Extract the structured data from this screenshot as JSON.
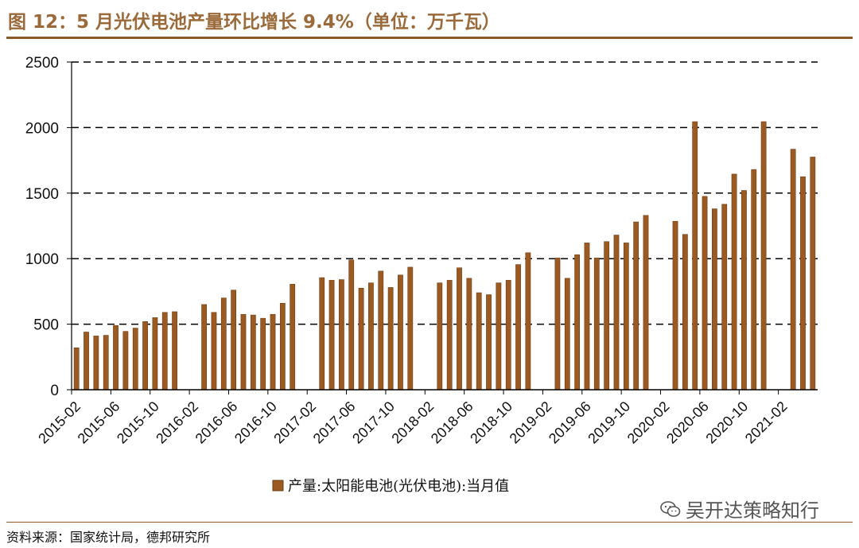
{
  "header": {
    "title": "图 12：5 月光伏电池产量环比增长 9.4%（单位：万千瓦）"
  },
  "footer": {
    "source": "资料来源：国家统计局，德邦研究所"
  },
  "watermark": {
    "text": "吴开达策略知行",
    "icon": "wechat-icon"
  },
  "colors": {
    "bar": "#9b5a22",
    "bar_edge": "#6e3c12",
    "accent": "#8b5a2b",
    "grid": "#000000"
  },
  "chart_data": {
    "type": "bar",
    "title": "",
    "xlabel": "",
    "ylabel": "",
    "ylim": [
      0,
      2500
    ],
    "yticks": [
      0,
      500,
      1000,
      1500,
      2000,
      2500
    ],
    "grid": true,
    "legend": "bottom-center",
    "tick_labels": [
      "2015-02",
      "2015-06",
      "2015-10",
      "2016-02",
      "2016-06",
      "2016-10",
      "2017-02",
      "2017-06",
      "2017-10",
      "2018-02",
      "2018-06",
      "2018-10",
      "2019-02",
      "2019-06",
      "2019-10",
      "2020-02",
      "2020-06",
      "2020-10",
      "2021-02"
    ],
    "categories": [
      "2015-02",
      "2015-03",
      "2015-04",
      "2015-05",
      "2015-06",
      "2015-07",
      "2015-08",
      "2015-09",
      "2015-10",
      "2015-11",
      "2015-12",
      "2016-01",
      "2016-02",
      "2016-03",
      "2016-04",
      "2016-05",
      "2016-06",
      "2016-07",
      "2016-08",
      "2016-09",
      "2016-10",
      "2016-11",
      "2016-12",
      "2017-01",
      "2017-02",
      "2017-03",
      "2017-04",
      "2017-05",
      "2017-06",
      "2017-07",
      "2017-08",
      "2017-09",
      "2017-10",
      "2017-11",
      "2017-12",
      "2018-01",
      "2018-02",
      "2018-03",
      "2018-04",
      "2018-05",
      "2018-06",
      "2018-07",
      "2018-08",
      "2018-09",
      "2018-10",
      "2018-11",
      "2018-12",
      "2019-01",
      "2019-02",
      "2019-03",
      "2019-04",
      "2019-05",
      "2019-06",
      "2019-07",
      "2019-08",
      "2019-09",
      "2019-10",
      "2019-11",
      "2019-12",
      "2020-01",
      "2020-02",
      "2020-03",
      "2020-04",
      "2020-05",
      "2020-06",
      "2020-07",
      "2020-08",
      "2020-09",
      "2020-10",
      "2020-11",
      "2020-12",
      "2021-01",
      "2021-02",
      "2021-03",
      "2021-04",
      "2021-05"
    ],
    "series": [
      {
        "name": "产量:太阳能电池(光伏电池):当月值",
        "values": [
          320,
          440,
          410,
          415,
          490,
          445,
          470,
          520,
          550,
          590,
          595,
          null,
          null,
          650,
          590,
          700,
          760,
          575,
          570,
          545,
          575,
          660,
          805,
          null,
          null,
          855,
          835,
          840,
          990,
          775,
          815,
          905,
          780,
          875,
          935,
          null,
          null,
          815,
          835,
          930,
          850,
          740,
          725,
          815,
          835,
          955,
          1045,
          null,
          null,
          1005,
          850,
          1030,
          1120,
          1005,
          1130,
          1180,
          1120,
          1280,
          1330,
          null,
          null,
          1285,
          1185,
          2045,
          1475,
          1380,
          1415,
          1645,
          1520,
          1680,
          2045,
          null,
          null,
          1835,
          1625,
          1775
        ]
      }
    ]
  }
}
